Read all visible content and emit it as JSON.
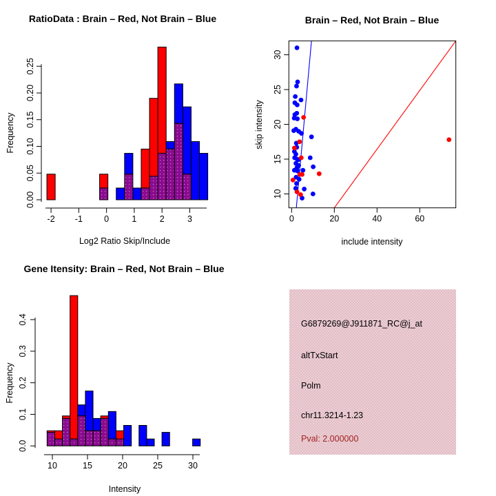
{
  "figure": {
    "background": "#ffffff"
  },
  "colors": {
    "brain_red": "#ff0000",
    "not_brain_blue": "#0000ff",
    "overlap_purple": "#8a0b8f",
    "overlap_dot": "#d07cd2",
    "axis_black": "#000000",
    "info_box_bg": "#f7c9d3",
    "info_box_dither": "#bebebe",
    "pval_red": "#a12222"
  },
  "chart_data": [
    {
      "id": "ratio_histogram",
      "type": "bar",
      "title": "RatioData : Brain – Red, Not Brain – Blue",
      "xlabel": "Log2 Ratio Skip/Include",
      "ylabel": "Frequency",
      "x_ticks": [
        -2,
        -1,
        0,
        1,
        2,
        3
      ],
      "y_ticks": [
        "0.00",
        "0.05",
        "0.10",
        "0.15",
        "0.20",
        "0.25"
      ],
      "xlim": [
        -2.35,
        3.61
      ],
      "ylim": [
        0,
        0.298
      ],
      "grid": false,
      "bars": [
        {
          "x0": -2.15,
          "x1": -1.85,
          "overlap": 0,
          "color": "red",
          "height": 0.048
        },
        {
          "x0": -0.25,
          "x1": 0.05,
          "overlap": 0.022,
          "color": "red",
          "height": 0.048
        },
        {
          "x0": 0.35,
          "x1": 0.65,
          "overlap": 0,
          "color": "blue",
          "height": 0.022
        },
        {
          "x0": 0.65,
          "x1": 0.95,
          "overlap": 0.048,
          "color": "blue",
          "height": 0.087
        },
        {
          "x0": 0.95,
          "x1": 1.25,
          "overlap": 0,
          "color": "blue",
          "height": 0.022
        },
        {
          "x0": 1.25,
          "x1": 1.55,
          "overlap": 0.022,
          "color": "red",
          "height": 0.095
        },
        {
          "x0": 1.55,
          "x1": 1.85,
          "overlap": 0.044,
          "color": "red",
          "height": 0.19
        },
        {
          "x0": 1.85,
          "x1": 2.15,
          "overlap": 0.087,
          "color": "red",
          "height": 0.286
        },
        {
          "x0": 2.15,
          "x1": 2.45,
          "overlap": 0.095,
          "color": "blue",
          "height": 0.109
        },
        {
          "x0": 2.45,
          "x1": 2.75,
          "overlap": 0.143,
          "color": "blue",
          "height": 0.217
        },
        {
          "x0": 2.75,
          "x1": 3.05,
          "overlap": 0.048,
          "color": "blue",
          "height": 0.174
        },
        {
          "x0": 3.05,
          "x1": 3.35,
          "overlap": 0,
          "color": "blue",
          "height": 0.109
        },
        {
          "x0": 3.35,
          "x1": 3.65,
          "overlap": 0,
          "color": "blue",
          "height": 0.087
        }
      ]
    },
    {
      "id": "intensity_scatter",
      "type": "scatter",
      "title": "Brain – Red, Not Brain – Blue",
      "xlabel": "include intensity",
      "ylabel": "skip intensity",
      "x_ticks": [
        0,
        20,
        40,
        60
      ],
      "y_ticks": [
        10,
        15,
        20,
        25,
        30
      ],
      "xlim": [
        -1.3,
        76.9
      ],
      "ylim": [
        8.0,
        32.0
      ],
      "grid": false,
      "series": [
        {
          "name": "Not Brain",
          "color": "blue",
          "points": [
            [
              2.5,
              31.0
            ],
            [
              2.8,
              26.1
            ],
            [
              2.3,
              25.5
            ],
            [
              1.7,
              24.0
            ],
            [
              4.4,
              23.5
            ],
            [
              1.5,
              23.1
            ],
            [
              2.6,
              22.8
            ],
            [
              2.4,
              21.6
            ],
            [
              1.5,
              21.4
            ],
            [
              1.2,
              20.9
            ],
            [
              2.7,
              20.8
            ],
            [
              2.0,
              19.3
            ],
            [
              1.0,
              19.1
            ],
            [
              3.3,
              19.0
            ],
            [
              4.6,
              18.7
            ],
            [
              9.3,
              18.2
            ],
            [
              2.2,
              17.3
            ],
            [
              2.4,
              16.7
            ],
            [
              1.3,
              16.1
            ],
            [
              2.0,
              15.7
            ],
            [
              8.7,
              15.2
            ],
            [
              1.4,
              15.2
            ],
            [
              2.6,
              15.0
            ],
            [
              3.1,
              14.9
            ],
            [
              2.0,
              14.4
            ],
            [
              3.3,
              14.1
            ],
            [
              2.5,
              13.8
            ],
            [
              10.1,
              13.9
            ],
            [
              1.3,
              13.4
            ],
            [
              2.8,
              13.3
            ],
            [
              5.3,
              13.4
            ],
            [
              2.1,
              12.4
            ],
            [
              3.5,
              12.1
            ],
            [
              2.3,
              11.5
            ],
            [
              1.9,
              10.8
            ],
            [
              5.9,
              10.7
            ],
            [
              10.0,
              10.0
            ],
            [
              4.9,
              9.4
            ]
          ]
        },
        {
          "name": "Brain",
          "color": "red",
          "points": [
            [
              5.6,
              21.0
            ],
            [
              3.7,
              17.5
            ],
            [
              1.3,
              16.6
            ],
            [
              4.5,
              15.2
            ],
            [
              3.8,
              12.8
            ],
            [
              4.9,
              12.8
            ],
            [
              12.9,
              12.9
            ],
            [
              0.6,
              12.0
            ],
            [
              2.5,
              10.3
            ],
            [
              4.2,
              9.9
            ],
            [
              73.7,
              17.8
            ]
          ]
        }
      ],
      "lines": [
        {
          "color": "blue",
          "from": [
            2.2,
            8.0
          ],
          "to": [
            9.3,
            32.0
          ]
        },
        {
          "color": "red",
          "from": [
            20.0,
            8.0
          ],
          "to": [
            76.9,
            32.0
          ]
        }
      ]
    },
    {
      "id": "gene_intensity_histogram",
      "type": "bar",
      "title": "Gene Itensity: Brain – Red, Not Brain – Blue",
      "xlabel": "Intensity",
      "ylabel": "Frequency",
      "x_ticks": [
        10,
        15,
        20,
        25,
        30
      ],
      "y_ticks": [
        "0.0",
        "0.1",
        "0.2",
        "0.3",
        "0.4"
      ],
      "xlim": [
        7.55,
        32.45
      ],
      "ylim": [
        0,
        0.485
      ],
      "grid": false,
      "bars": [
        {
          "x0": 9.25,
          "x1": 10.34,
          "overlap": 0.043,
          "color": "red",
          "height": 0.048
        },
        {
          "x0": 10.34,
          "x1": 11.43,
          "overlap": 0.022,
          "color": "red",
          "height": 0.048
        },
        {
          "x0": 11.43,
          "x1": 12.52,
          "overlap": 0.087,
          "color": "red",
          "height": 0.095
        },
        {
          "x0": 12.52,
          "x1": 13.61,
          "overlap": 0.022,
          "color": "red",
          "height": 0.476
        },
        {
          "x0": 13.61,
          "x1": 14.7,
          "overlap": 0.095,
          "color": "blue",
          "height": 0.13
        },
        {
          "x0": 14.7,
          "x1": 15.79,
          "overlap": 0.048,
          "color": "blue",
          "height": 0.174
        },
        {
          "x0": 15.79,
          "x1": 16.88,
          "overlap": 0.048,
          "color": "blue",
          "height": 0.087
        },
        {
          "x0": 16.88,
          "x1": 17.97,
          "overlap": 0.087,
          "color": "red",
          "height": 0.095
        },
        {
          "x0": 17.97,
          "x1": 19.06,
          "overlap": 0.022,
          "color": "blue",
          "height": 0.109
        },
        {
          "x0": 19.06,
          "x1": 20.15,
          "overlap": 0.022,
          "color": "red",
          "height": 0.048
        },
        {
          "x0": 20.15,
          "x1": 21.24,
          "overlap": 0,
          "color": "blue",
          "height": 0.065
        },
        {
          "x0": 22.33,
          "x1": 23.42,
          "overlap": 0,
          "color": "blue",
          "height": 0.065
        },
        {
          "x0": 23.42,
          "x1": 24.51,
          "overlap": 0,
          "color": "blue",
          "height": 0.022
        },
        {
          "x0": 25.6,
          "x1": 26.69,
          "overlap": 0,
          "color": "blue",
          "height": 0.043
        },
        {
          "x0": 29.96,
          "x1": 31.05,
          "overlap": 0,
          "color": "blue",
          "height": 0.022
        }
      ]
    }
  ],
  "info_box": {
    "lines": [
      {
        "text": "G6879269@J911871_RC@j_at",
        "color": "black"
      },
      {
        "text": "altTxStart",
        "color": "black"
      },
      {
        "text": "Polm",
        "color": "black"
      },
      {
        "text": "chr11.3214-1.23",
        "color": "black"
      },
      {
        "text": "Pval: 2.000000",
        "color": "pval_red"
      }
    ]
  }
}
